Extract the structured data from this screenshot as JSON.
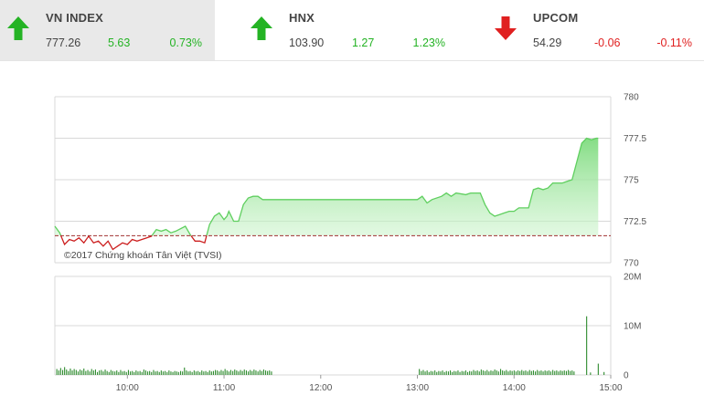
{
  "tickers": [
    {
      "name": "VN INDEX",
      "value": "777.26",
      "change": "5.63",
      "percent": "0.73%",
      "direction": "up",
      "icon": "arrow-up-icon"
    },
    {
      "name": "HNX",
      "value": "103.90",
      "change": "1.27",
      "percent": "1.23%",
      "direction": "up",
      "icon": "arrow-up-icon"
    },
    {
      "name": "UPCOM",
      "value": "54.29",
      "change": "-0.06",
      "percent": "-0.11%",
      "direction": "down",
      "icon": "arrow-down-icon"
    }
  ],
  "colors": {
    "up": "#24b324",
    "down": "#e02020",
    "reference": "#a03030",
    "area": "#86e086"
  },
  "chart_data": {
    "type": "line",
    "credit": "©2017 Chứng khoán Tân Việt (TVSI)",
    "x_ticks": [
      "10:00",
      "11:00",
      "12:00",
      "13:00",
      "14:00",
      "15:00"
    ],
    "price_axis": {
      "ticks": [
        "780",
        "777.5",
        "775",
        "772.5",
        "770"
      ],
      "ylim": [
        770,
        780
      ]
    },
    "volume_axis": {
      "ticks": [
        "20M",
        "10M",
        "0"
      ],
      "ylim": [
        0,
        20
      ]
    },
    "reference_value": 771.63,
    "price_series": [
      [
        9.25,
        772.2
      ],
      [
        9.3,
        771.8
      ],
      [
        9.35,
        771.1
      ],
      [
        9.4,
        771.4
      ],
      [
        9.45,
        771.3
      ],
      [
        9.5,
        771.5
      ],
      [
        9.55,
        771.2
      ],
      [
        9.6,
        771.6
      ],
      [
        9.65,
        771.2
      ],
      [
        9.7,
        771.3
      ],
      [
        9.75,
        771.0
      ],
      [
        9.8,
        771.3
      ],
      [
        9.85,
        770.8
      ],
      [
        9.9,
        771.0
      ],
      [
        9.95,
        771.2
      ],
      [
        10.0,
        771.1
      ],
      [
        10.05,
        771.4
      ],
      [
        10.1,
        771.3
      ],
      [
        10.15,
        771.4
      ],
      [
        10.2,
        771.5
      ],
      [
        10.25,
        771.6
      ],
      [
        10.3,
        772.0
      ],
      [
        10.35,
        771.9
      ],
      [
        10.4,
        772.0
      ],
      [
        10.45,
        771.8
      ],
      [
        10.5,
        771.9
      ],
      [
        10.6,
        772.2
      ],
      [
        10.65,
        771.7
      ],
      [
        10.7,
        771.3
      ],
      [
        10.75,
        771.3
      ],
      [
        10.8,
        771.2
      ],
      [
        10.85,
        772.3
      ],
      [
        10.9,
        772.8
      ],
      [
        10.95,
        773.0
      ],
      [
        11.0,
        772.6
      ],
      [
        11.03,
        772.8
      ],
      [
        11.05,
        773.1
      ],
      [
        11.1,
        772.5
      ],
      [
        11.15,
        772.5
      ],
      [
        11.2,
        773.5
      ],
      [
        11.25,
        773.9
      ],
      [
        11.3,
        774.0
      ],
      [
        11.35,
        774.0
      ],
      [
        11.4,
        773.8
      ],
      [
        11.45,
        773.8
      ],
      [
        12.0,
        773.8
      ],
      [
        12.5,
        773.8
      ],
      [
        13.0,
        773.8
      ],
      [
        13.05,
        774.0
      ],
      [
        13.1,
        773.6
      ],
      [
        13.15,
        773.8
      ],
      [
        13.25,
        774.0
      ],
      [
        13.3,
        774.2
      ],
      [
        13.35,
        774.0
      ],
      [
        13.4,
        774.2
      ],
      [
        13.5,
        774.1
      ],
      [
        13.55,
        774.2
      ],
      [
        13.65,
        774.2
      ],
      [
        13.7,
        773.5
      ],
      [
        13.75,
        773.0
      ],
      [
        13.8,
        772.8
      ],
      [
        13.85,
        772.9
      ],
      [
        13.9,
        773.0
      ],
      [
        13.95,
        773.1
      ],
      [
        14.0,
        773.1
      ],
      [
        14.05,
        773.3
      ],
      [
        14.1,
        773.3
      ],
      [
        14.15,
        773.3
      ],
      [
        14.2,
        774.4
      ],
      [
        14.25,
        774.5
      ],
      [
        14.3,
        774.4
      ],
      [
        14.35,
        774.5
      ],
      [
        14.4,
        774.8
      ],
      [
        14.45,
        774.8
      ],
      [
        14.5,
        774.8
      ],
      [
        14.55,
        774.9
      ],
      [
        14.6,
        775.0
      ],
      [
        14.65,
        776.1
      ],
      [
        14.7,
        777.2
      ],
      [
        14.75,
        777.5
      ],
      [
        14.8,
        777.4
      ],
      [
        14.85,
        777.5
      ],
      [
        14.87,
        777.5
      ]
    ],
    "volume_series": [
      [
        9.27,
        1.2
      ],
      [
        9.29,
        0.9
      ],
      [
        9.31,
        1.4
      ],
      [
        9.33,
        1.0
      ],
      [
        9.35,
        1.6
      ],
      [
        9.37,
        1.1
      ],
      [
        9.39,
        0.8
      ],
      [
        9.41,
        1.3
      ],
      [
        9.43,
        0.9
      ],
      [
        9.45,
        1.2
      ],
      [
        9.47,
        1.0
      ],
      [
        9.49,
        0.7
      ],
      [
        9.51,
        1.1
      ],
      [
        9.53,
        0.9
      ],
      [
        9.55,
        1.3
      ],
      [
        9.57,
        0.8
      ],
      [
        9.59,
        1.0
      ],
      [
        9.61,
        0.7
      ],
      [
        9.63,
        1.2
      ],
      [
        9.65,
        0.9
      ],
      [
        9.67,
        1.1
      ],
      [
        9.69,
        0.6
      ],
      [
        9.71,
        0.9
      ],
      [
        9.73,
        1.0
      ],
      [
        9.75,
        0.7
      ],
      [
        9.77,
        1.1
      ],
      [
        9.79,
        0.8
      ],
      [
        9.81,
        0.6
      ],
      [
        9.83,
        1.0
      ],
      [
        9.85,
        0.8
      ],
      [
        9.87,
        0.7
      ],
      [
        9.89,
        0.9
      ],
      [
        9.91,
        0.6
      ],
      [
        9.93,
        1.0
      ],
      [
        9.95,
        0.7
      ],
      [
        9.97,
        0.8
      ],
      [
        9.99,
        0.6
      ],
      [
        10.01,
        1.0
      ],
      [
        10.03,
        0.7
      ],
      [
        10.05,
        0.8
      ],
      [
        10.07,
        0.6
      ],
      [
        10.09,
        0.9
      ],
      [
        10.11,
        0.7
      ],
      [
        10.13,
        0.8
      ],
      [
        10.15,
        0.6
      ],
      [
        10.17,
        1.1
      ],
      [
        10.19,
        0.9
      ],
      [
        10.21,
        0.7
      ],
      [
        10.23,
        0.8
      ],
      [
        10.25,
        0.6
      ],
      [
        10.27,
        1.0
      ],
      [
        10.29,
        0.7
      ],
      [
        10.31,
        0.8
      ],
      [
        10.33,
        0.6
      ],
      [
        10.35,
        0.9
      ],
      [
        10.37,
        0.7
      ],
      [
        10.39,
        0.8
      ],
      [
        10.41,
        0.6
      ],
      [
        10.43,
        0.9
      ],
      [
        10.45,
        0.7
      ],
      [
        10.47,
        0.6
      ],
      [
        10.49,
        0.8
      ],
      [
        10.51,
        0.7
      ],
      [
        10.53,
        0.6
      ],
      [
        10.55,
        0.8
      ],
      [
        10.57,
        0.7
      ],
      [
        10.59,
        1.5
      ],
      [
        10.61,
        0.9
      ],
      [
        10.63,
        0.7
      ],
      [
        10.65,
        0.8
      ],
      [
        10.67,
        0.6
      ],
      [
        10.69,
        0.9
      ],
      [
        10.71,
        0.7
      ],
      [
        10.73,
        0.8
      ],
      [
        10.75,
        0.6
      ],
      [
        10.77,
        0.9
      ],
      [
        10.79,
        0.7
      ],
      [
        10.81,
        0.8
      ],
      [
        10.83,
        0.6
      ],
      [
        10.85,
        0.9
      ],
      [
        10.87,
        0.7
      ],
      [
        10.89,
        0.8
      ],
      [
        10.91,
        1.0
      ],
      [
        10.93,
        0.9
      ],
      [
        10.95,
        0.7
      ],
      [
        10.97,
        1.0
      ],
      [
        10.99,
        0.8
      ],
      [
        11.01,
        1.2
      ],
      [
        11.03,
        0.9
      ],
      [
        11.05,
        0.7
      ],
      [
        11.07,
        1.0
      ],
      [
        11.09,
        0.8
      ],
      [
        11.11,
        1.1
      ],
      [
        11.13,
        0.9
      ],
      [
        11.15,
        0.7
      ],
      [
        11.17,
        1.0
      ],
      [
        11.19,
        0.8
      ],
      [
        11.21,
        1.1
      ],
      [
        11.23,
        0.9
      ],
      [
        11.25,
        0.7
      ],
      [
        11.27,
        1.0
      ],
      [
        11.29,
        0.8
      ],
      [
        11.31,
        1.1
      ],
      [
        11.33,
        0.9
      ],
      [
        11.35,
        0.7
      ],
      [
        11.37,
        1.0
      ],
      [
        11.39,
        0.8
      ],
      [
        11.41,
        1.1
      ],
      [
        11.43,
        0.9
      ],
      [
        11.45,
        0.8
      ],
      [
        11.47,
        0.9
      ],
      [
        11.49,
        0.7
      ],
      [
        13.02,
        1.2
      ],
      [
        13.04,
        0.8
      ],
      [
        13.06,
        1.0
      ],
      [
        13.08,
        0.7
      ],
      [
        13.1,
        0.9
      ],
      [
        13.12,
        0.6
      ],
      [
        13.14,
        0.8
      ],
      [
        13.16,
        0.7
      ],
      [
        13.18,
        0.9
      ],
      [
        13.2,
        0.6
      ],
      [
        13.22,
        0.8
      ],
      [
        13.24,
        0.7
      ],
      [
        13.26,
        0.9
      ],
      [
        13.28,
        0.6
      ],
      [
        13.3,
        0.8
      ],
      [
        13.32,
        0.7
      ],
      [
        13.34,
        0.9
      ],
      [
        13.36,
        0.6
      ],
      [
        13.38,
        0.8
      ],
      [
        13.4,
        0.7
      ],
      [
        13.42,
        0.9
      ],
      [
        13.44,
        0.6
      ],
      [
        13.46,
        0.8
      ],
      [
        13.48,
        0.7
      ],
      [
        13.5,
        0.9
      ],
      [
        13.52,
        0.6
      ],
      [
        13.54,
        0.8
      ],
      [
        13.56,
        0.7
      ],
      [
        13.58,
        1.0
      ],
      [
        13.6,
        0.8
      ],
      [
        13.62,
        0.9
      ],
      [
        13.64,
        0.7
      ],
      [
        13.66,
        1.1
      ],
      [
        13.68,
        0.9
      ],
      [
        13.7,
        0.8
      ],
      [
        13.72,
        1.0
      ],
      [
        13.74,
        0.7
      ],
      [
        13.76,
        0.9
      ],
      [
        13.78,
        0.8
      ],
      [
        13.8,
        1.1
      ],
      [
        13.82,
        0.9
      ],
      [
        13.84,
        0.7
      ],
      [
        13.86,
        1.2
      ],
      [
        13.88,
        0.9
      ],
      [
        13.9,
        0.8
      ],
      [
        13.92,
        1.0
      ],
      [
        13.94,
        0.7
      ],
      [
        13.96,
        0.9
      ],
      [
        13.98,
        0.8
      ],
      [
        14.0,
        0.9
      ],
      [
        14.02,
        0.7
      ],
      [
        14.04,
        0.9
      ],
      [
        14.06,
        0.8
      ],
      [
        14.08,
        1.0
      ],
      [
        14.1,
        0.8
      ],
      [
        14.12,
        0.9
      ],
      [
        14.14,
        0.7
      ],
      [
        14.16,
        1.0
      ],
      [
        14.18,
        0.8
      ],
      [
        14.2,
        0.9
      ],
      [
        14.22,
        0.7
      ],
      [
        14.24,
        1.0
      ],
      [
        14.26,
        0.8
      ],
      [
        14.28,
        0.9
      ],
      [
        14.3,
        0.7
      ],
      [
        14.32,
        0.9
      ],
      [
        14.34,
        0.8
      ],
      [
        14.36,
        0.9
      ],
      [
        14.38,
        0.7
      ],
      [
        14.4,
        1.0
      ],
      [
        14.42,
        0.8
      ],
      [
        14.44,
        0.9
      ],
      [
        14.46,
        0.7
      ],
      [
        14.48,
        0.9
      ],
      [
        14.5,
        0.8
      ],
      [
        14.52,
        0.9
      ],
      [
        14.54,
        0.8
      ],
      [
        14.56,
        1.0
      ],
      [
        14.58,
        0.8
      ],
      [
        14.6,
        0.9
      ],
      [
        14.62,
        0.7
      ],
      [
        14.75,
        11.9
      ],
      [
        14.79,
        0.5
      ],
      [
        14.87,
        2.3
      ],
      [
        14.93,
        0.6
      ]
    ]
  }
}
